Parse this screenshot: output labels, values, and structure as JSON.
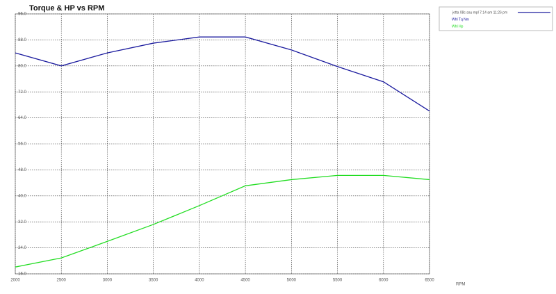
{
  "chart_data": {
    "type": "line",
    "title": "Torque & HP vs RPM",
    "x_label": "RPM",
    "legend_title": "jetta 08c sau mpl 7:14 am 11:26 pm",
    "x": [
      2000,
      2500,
      3000,
      3500,
      4000,
      4500,
      5000,
      5500,
      6000,
      6500
    ],
    "series": [
      {
        "name": "Whl Tq Nm",
        "color": "#1a1a9e",
        "values": [
          84.0,
          80.0,
          84.0,
          87.0,
          88.9,
          88.9,
          84.9,
          79.8,
          75.1,
          66.1
        ]
      },
      {
        "name": "Whl Hp",
        "color": "#22dd22",
        "values": [
          18.1,
          20.9,
          26.0,
          31.2,
          37.0,
          43.1,
          45.0,
          46.3,
          46.3,
          45.0
        ]
      }
    ],
    "xlim": [
      2000,
      6500
    ],
    "xticks": [
      2000,
      2500,
      3000,
      3500,
      4000,
      4500,
      5000,
      5500,
      6000,
      6500
    ],
    "ylim": [
      16,
      96
    ],
    "yticks": [
      {
        "value": 16,
        "label": "16.0"
      },
      {
        "value": 24,
        "label": "24.0"
      },
      {
        "value": 32,
        "label": "32.0"
      },
      {
        "value": 40,
        "label": "40.0"
      },
      {
        "value": 48,
        "label": "48.0"
      },
      {
        "value": 56,
        "label": "56.0"
      },
      {
        "value": 64,
        "label": "64.0"
      },
      {
        "value": 72,
        "label": "72.0"
      },
      {
        "value": 80,
        "label": "80.0"
      },
      {
        "value": 88,
        "label": "88.0"
      },
      {
        "value": 96,
        "label": "96.0"
      }
    ],
    "grid": true,
    "legend": "right"
  }
}
